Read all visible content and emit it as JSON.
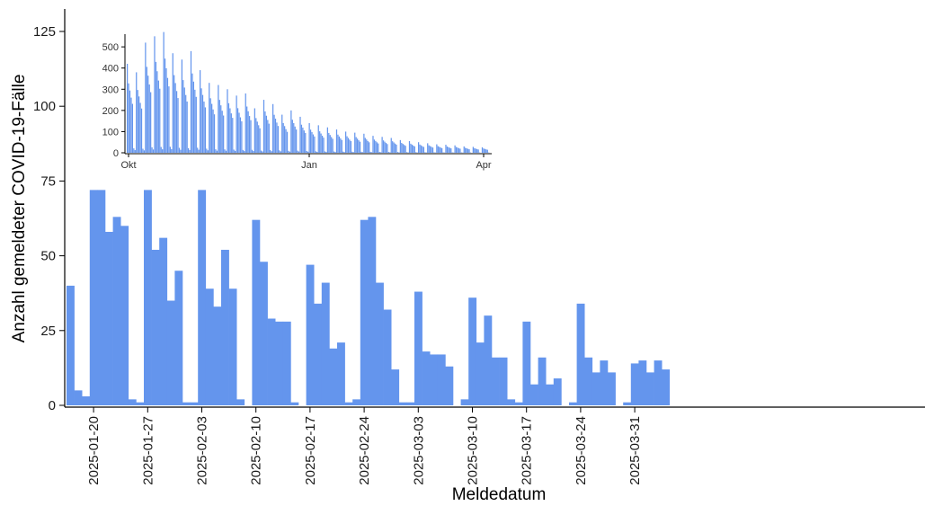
{
  "chart_data": [
    {
      "type": "bar",
      "xlabel": "Meldedatum",
      "ylabel": "Anzahl gemeldeter COVID-19-Fälle",
      "ylim": [
        0,
        125
      ],
      "y_ticks": [
        0,
        25,
        50,
        75,
        100,
        125
      ],
      "x_tick_labels": [
        "2025-01-20",
        "2025-01-27",
        "2025-02-03",
        "2025-02-10",
        "2025-02-17",
        "2025-02-24",
        "2025-03-03",
        "2025-03-10",
        "2025-03-17",
        "2025-03-24",
        "2025-03-31"
      ],
      "x_tick_offsets": [
        3,
        10,
        17,
        24,
        31,
        38,
        45,
        52,
        59,
        66,
        73
      ],
      "bar_color": "#6495ED",
      "values": [
        40,
        5,
        3,
        72,
        72,
        58,
        63,
        60,
        2,
        1,
        72,
        52,
        56,
        35,
        45,
        1,
        1,
        72,
        39,
        33,
        52,
        39,
        2,
        0,
        62,
        48,
        29,
        28,
        28,
        1,
        0,
        47,
        34,
        41,
        19,
        21,
        1,
        2,
        62,
        63,
        41,
        32,
        12,
        1,
        1,
        38,
        18,
        17,
        17,
        13,
        0,
        2,
        36,
        21,
        30,
        16,
        16,
        2,
        1,
        28,
        7,
        16,
        7,
        9,
        0,
        1,
        34,
        16,
        11,
        15,
        11,
        0,
        1,
        14,
        15,
        11,
        15,
        12
      ]
    },
    {
      "type": "bar",
      "ylim": [
        0,
        560
      ],
      "y_ticks": [
        0,
        100,
        200,
        300,
        400,
        500
      ],
      "x_tick_labels": [
        "Okt",
        "Jan",
        "Apr"
      ],
      "bar_color": "#6495ED",
      "peaks": [
        420,
        380,
        520,
        550,
        570,
        470,
        440,
        480,
        390,
        330,
        320,
        300,
        270,
        280,
        210,
        250,
        230,
        180,
        200,
        170,
        140,
        130,
        120,
        110,
        100,
        95,
        90,
        80,
        75,
        70,
        60,
        55,
        50,
        45,
        40,
        38,
        35,
        30,
        28,
        26
      ]
    }
  ]
}
